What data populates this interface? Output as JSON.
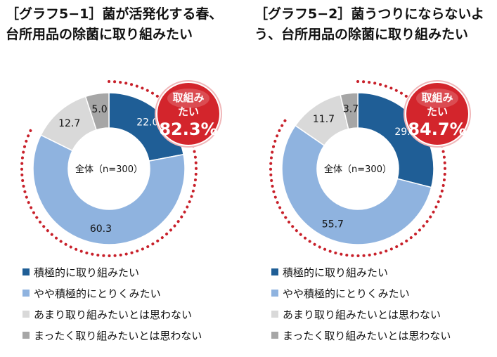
{
  "colors": {
    "positive": "#1f5e96",
    "somewhat": "#8fb3df",
    "not_much": "#d9d9d9",
    "not_at_all": "#a6a6a6",
    "badge": "#d3252c",
    "dots": "#c8202a"
  },
  "legend": [
    "積極的に取り組みたい",
    "やや積極的にとりくみたい",
    "あまり取り組みたいとは思わない",
    "まったく取り組みたいとは思わない"
  ],
  "charts": [
    {
      "title_line1": "［グラフ5−1］菌が活発化する春、",
      "title_line2": "台所用品の除菌に取り組みたい",
      "center_label": "全体（n=300）",
      "badge_line1": "取組み",
      "badge_line2": "たい",
      "badge_value": "82.3%",
      "value_labels": [
        "22.0",
        "60.3",
        "12.7",
        "5.0"
      ]
    },
    {
      "title_line1": "［グラフ5−2］菌うつりにならないよ",
      "title_line2": "う、台所用品の除菌に取り組みたい",
      "center_label": "全体（n=300）",
      "badge_line1": "取組み",
      "badge_line2": "たい",
      "badge_value": "84.7%",
      "value_labels": [
        "29.0",
        "55.7",
        "11.7",
        "3.7"
      ]
    }
  ],
  "chart_data": [
    {
      "type": "pie",
      "title": "［グラフ5−1］菌が活発化する春、台所用品の除菌に取り組みたい",
      "categories": [
        "積極的に取り組みたい",
        "やや積極的にとりくみたい",
        "あまり取り組みたいとは思わない",
        "まったく取り組みたいとは思わない"
      ],
      "values": [
        22.0,
        60.3,
        12.7,
        5.0
      ],
      "legend": "bottom"
    },
    {
      "type": "pie",
      "title": "［グラフ5−2］菌うつりにならないよう、台所用品の除菌に取り組みたい",
      "categories": [
        "積極的に取り組みたい",
        "やや積極的にとりくみたい",
        "あまり取り組みたいとは思わない",
        "まったく取り組みたいとは思わない"
      ],
      "values": [
        29.0,
        55.7,
        11.7,
        3.7
      ],
      "legend": "bottom"
    }
  ]
}
